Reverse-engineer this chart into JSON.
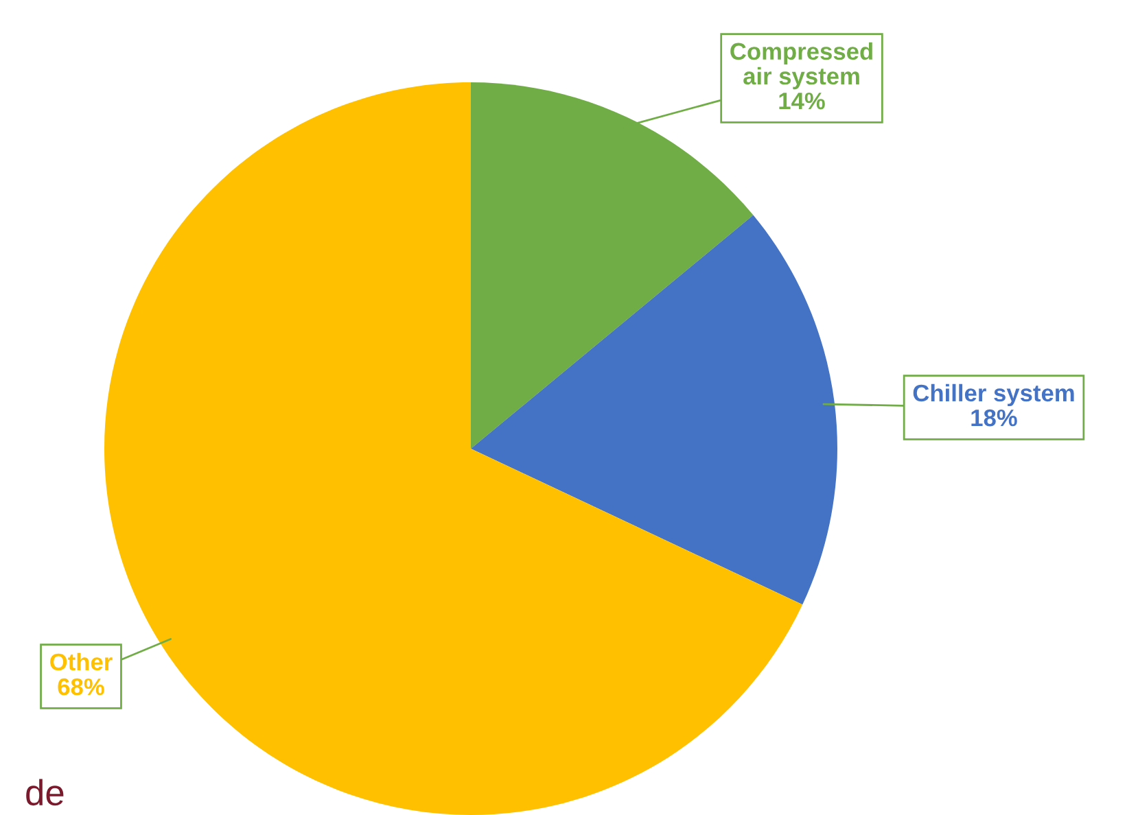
{
  "chart_data": {
    "type": "pie",
    "categories": [
      "Compressed air system",
      "Chiller system",
      "Other"
    ],
    "values": [
      14,
      18,
      68
    ],
    "colors": [
      "#70ad47",
      "#4472c4",
      "#ffc000"
    ],
    "value_labels": [
      "14%",
      "18%",
      "68%"
    ],
    "annotations": [
      "de"
    ]
  }
}
